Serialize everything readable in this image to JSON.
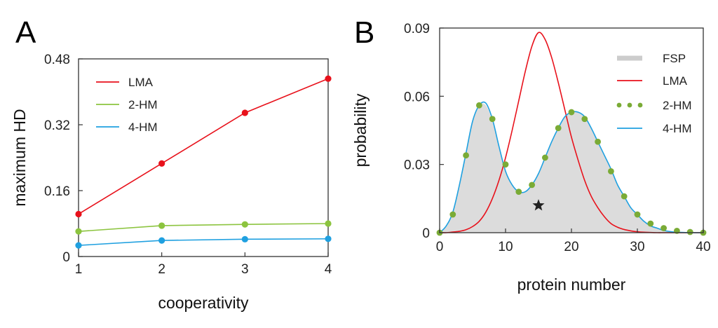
{
  "panel_a": {
    "letter": "A"
  },
  "panel_b": {
    "letter": "B"
  },
  "colors": {
    "lma": "#e8111b",
    "hm2": "#8cc43f",
    "hm4": "#1fa0e0",
    "fsp": "#dcdcdc",
    "dot": "#7aab36",
    "star": "#222222"
  },
  "chart_data": [
    {
      "type": "line",
      "panel": "A",
      "title": "",
      "xlabel": "cooperativity",
      "ylabel": "maximum HD",
      "x": [
        1,
        2,
        3,
        4
      ],
      "xticks": [
        "1",
        "2",
        "3",
        "4"
      ],
      "yticks": [
        "0",
        "0.16",
        "0.32",
        "0.48"
      ],
      "xlim": [
        1,
        4
      ],
      "ylim": [
        0,
        0.48
      ],
      "grid": false,
      "legend_position": "top-left",
      "series": [
        {
          "name": "LMA",
          "values": [
            0.103,
            0.226,
            0.349,
            0.432
          ]
        },
        {
          "name": "2-HM",
          "values": [
            0.061,
            0.075,
            0.078,
            0.08
          ]
        },
        {
          "name": "4-HM",
          "values": [
            0.027,
            0.039,
            0.042,
            0.043
          ]
        }
      ]
    },
    {
      "type": "line",
      "panel": "B",
      "title": "",
      "xlabel": "protein number",
      "ylabel": "probability",
      "xticks": [
        "0",
        "10",
        "20",
        "30",
        "40"
      ],
      "yticks": [
        "0",
        "0.03",
        "0.06",
        "0.09"
      ],
      "xlim": [
        0,
        40
      ],
      "ylim": [
        0,
        0.09
      ],
      "grid": false,
      "legend_position": "top-right",
      "series": [
        {
          "name": "FSP",
          "style": "filled-area",
          "x": [
            0,
            1,
            2,
            3,
            4,
            5,
            6,
            7,
            8,
            9,
            10,
            11,
            12,
            13,
            14,
            15,
            16,
            17,
            18,
            19,
            20,
            21,
            22,
            23,
            24,
            25,
            26,
            27,
            28,
            29,
            30,
            31,
            32,
            33,
            34,
            35,
            36,
            37,
            38,
            39,
            40
          ],
          "values": [
            0,
            0.003,
            0.009,
            0.021,
            0.035,
            0.049,
            0.056,
            0.056,
            0.049,
            0.038,
            0.027,
            0.021,
            0.018,
            0.018,
            0.021,
            0.026,
            0.033,
            0.04,
            0.046,
            0.051,
            0.053,
            0.053,
            0.051,
            0.046,
            0.04,
            0.034,
            0.028,
            0.021,
            0.016,
            0.011,
            0.008,
            0.005,
            0.003,
            0.002,
            0.001,
            0.0005,
            0.0002,
            0.0001,
            0,
            0,
            0
          ]
        },
        {
          "name": "LMA",
          "style": "line",
          "x": [
            0,
            1,
            2,
            3,
            4,
            5,
            6,
            7,
            8,
            9,
            10,
            11,
            12,
            13,
            14,
            15,
            16,
            17,
            18,
            19,
            20,
            21,
            22,
            23,
            24,
            25,
            26,
            27,
            28,
            29,
            30,
            31,
            32,
            33,
            34,
            35,
            36,
            37,
            38,
            39,
            40
          ],
          "values": [
            0,
            0,
            0.0003,
            0.0006,
            0.0013,
            0.0027,
            0.005,
            0.009,
            0.015,
            0.023,
            0.033,
            0.045,
            0.058,
            0.071,
            0.082,
            0.088,
            0.085,
            0.077,
            0.066,
            0.054,
            0.042,
            0.032,
            0.023,
            0.016,
            0.011,
            0.007,
            0.004,
            0.0024,
            0.0014,
            0.0008,
            0.0004,
            0.0002,
            0.0001,
            0,
            0,
            0,
            0,
            0,
            0,
            0,
            0
          ]
        },
        {
          "name": "2-HM",
          "style": "dotted-markers",
          "x": [
            0,
            2,
            4,
            6,
            8,
            10,
            12,
            14,
            16,
            18,
            20,
            22,
            24,
            26,
            28,
            30,
            32,
            34,
            36,
            38,
            40
          ],
          "values": [
            0,
            0.008,
            0.034,
            0.056,
            0.05,
            0.03,
            0.018,
            0.021,
            0.033,
            0.046,
            0.053,
            0.05,
            0.04,
            0.027,
            0.016,
            0.008,
            0.004,
            0.002,
            0.0008,
            0.0003,
            0
          ]
        },
        {
          "name": "4-HM",
          "style": "line",
          "x": [
            0,
            1,
            2,
            3,
            4,
            5,
            6,
            7,
            8,
            9,
            10,
            11,
            12,
            13,
            14,
            15,
            16,
            17,
            18,
            19,
            20,
            21,
            22,
            23,
            24,
            25,
            26,
            27,
            28,
            29,
            30,
            31,
            32,
            33,
            34,
            35,
            36,
            37,
            38,
            39,
            40
          ],
          "values": [
            0,
            0.003,
            0.009,
            0.021,
            0.035,
            0.049,
            0.056,
            0.057,
            0.05,
            0.038,
            0.027,
            0.021,
            0.018,
            0.018,
            0.021,
            0.026,
            0.033,
            0.04,
            0.046,
            0.051,
            0.053,
            0.053,
            0.051,
            0.046,
            0.04,
            0.034,
            0.028,
            0.021,
            0.016,
            0.011,
            0.008,
            0.005,
            0.003,
            0.002,
            0.001,
            0.0005,
            0.0002,
            0.0001,
            0,
            0,
            0
          ]
        }
      ],
      "annotations": [
        {
          "type": "star",
          "x": 15,
          "y": 0.012
        }
      ]
    }
  ]
}
